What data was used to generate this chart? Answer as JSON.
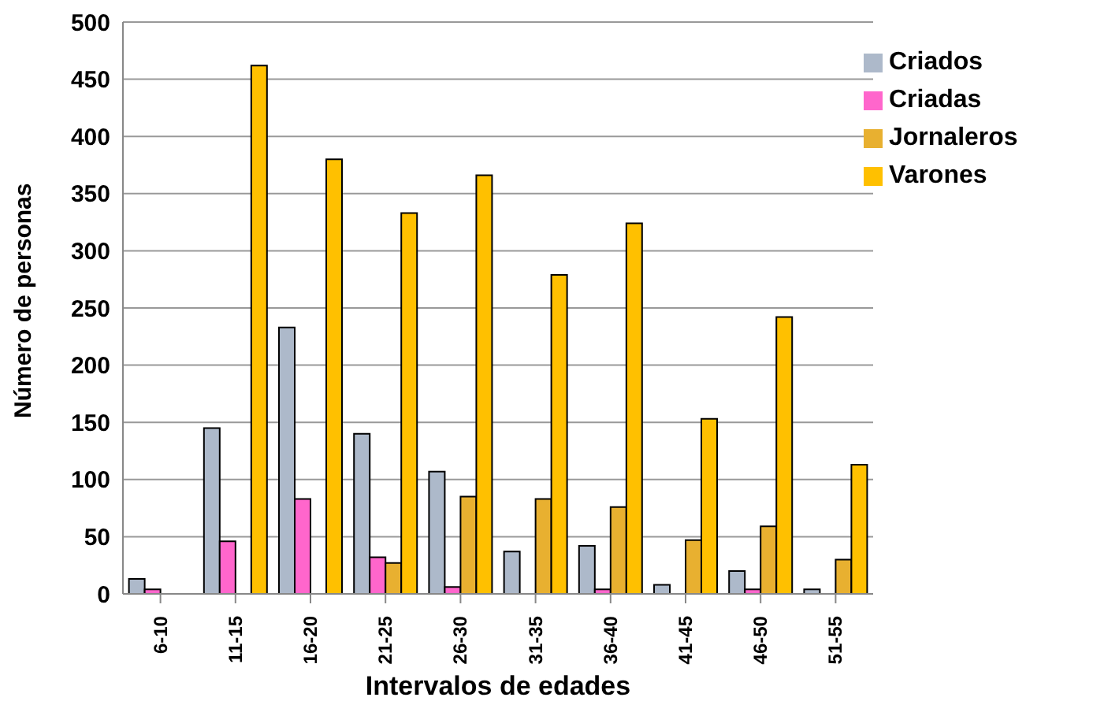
{
  "chart_data": {
    "type": "bar",
    "xlabel": "Intervalos de edades",
    "ylabel": "Número de personas",
    "categories": [
      "6-10",
      "11-15",
      "16-20",
      "21-25",
      "26-30",
      "31-35",
      "36-40",
      "41-45",
      "46-50",
      "51-55"
    ],
    "series": [
      {
        "name": "Criados",
        "color": "#adb9ca",
        "values": [
          13,
          145,
          233,
          140,
          107,
          37,
          42,
          8,
          20,
          4
        ]
      },
      {
        "name": "Criadas",
        "color": "#ff66cc",
        "values": [
          4,
          46,
          83,
          32,
          6,
          null,
          4,
          null,
          4,
          null
        ]
      },
      {
        "name": "Jornaleros",
        "color": "#e8b030",
        "values": [
          0,
          null,
          null,
          27,
          85,
          83,
          76,
          47,
          59,
          30
        ]
      },
      {
        "name": "Varones",
        "color": "#ffc000",
        "values": [
          0,
          462,
          380,
          333,
          366,
          279,
          324,
          153,
          242,
          113
        ]
      }
    ],
    "ylim": [
      0,
      500
    ],
    "yticks": [
      0,
      50,
      100,
      150,
      200,
      250,
      300,
      350,
      400,
      450,
      500
    ],
    "grid": "y",
    "legend": "top right"
  }
}
